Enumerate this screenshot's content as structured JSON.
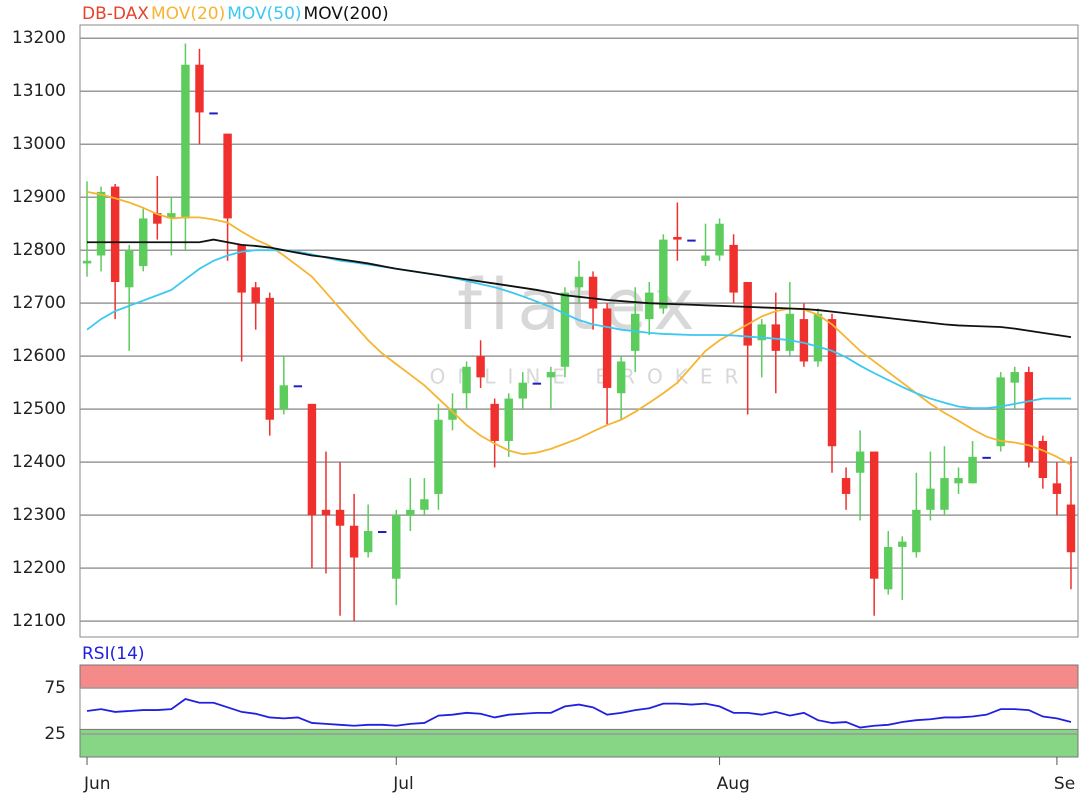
{
  "chart_data": [
    {
      "type": "candlestick",
      "name": "DB-DAX",
      "color": "#e8412c",
      "up_color": "#5ccc5c",
      "down_color": "#f0302d",
      "doji_color": "#2020c0",
      "watermark": [
        "flatex",
        "ONLINE BROKER"
      ],
      "categories": [
        "Jun",
        null,
        null,
        null,
        null,
        null,
        null,
        null,
        null,
        null,
        null,
        null,
        null,
        null,
        null,
        null,
        null,
        null,
        null,
        null,
        null,
        null,
        "Jul",
        null,
        null,
        null,
        null,
        null,
        null,
        null,
        null,
        null,
        null,
        null,
        null,
        null,
        null,
        null,
        null,
        null,
        null,
        null,
        null,
        null,
        null,
        "Aug",
        null,
        null,
        null,
        null,
        null,
        null,
        null,
        null,
        null,
        null,
        null,
        null,
        null,
        null,
        null,
        null,
        null,
        null,
        null,
        null,
        null,
        null,
        null,
        "Se",
        null
      ],
      "open": [
        12775,
        12790,
        12920,
        12730,
        12770,
        12870,
        12860,
        12860,
        13150,
        13060,
        13020,
        12810,
        12730,
        12710,
        12500,
        12545,
        12510,
        12310,
        12310,
        12280,
        12230,
        12270,
        12180,
        12300,
        12310,
        12340,
        12480,
        12530,
        12600,
        12510,
        12440,
        12520,
        12550,
        12560,
        12580,
        12730,
        12750,
        12690,
        12530,
        12610,
        12670,
        12690,
        12825,
        12820,
        12780,
        12790,
        12810,
        12740,
        12630,
        12660,
        12610,
        12670,
        12590,
        12670,
        12370,
        12380,
        12420,
        12160,
        12240,
        12230,
        12310,
        12310,
        12360,
        12360,
        12410,
        12430,
        12550,
        12570,
        12440,
        12360,
        12320
      ],
      "high": [
        12930,
        12920,
        12925,
        12810,
        12880,
        12940,
        12900,
        13190,
        13180,
        13060,
        13020,
        12810,
        12740,
        12720,
        12600,
        12545,
        12510,
        12420,
        12400,
        12340,
        12320,
        12270,
        12310,
        12370,
        12370,
        12510,
        12530,
        12590,
        12630,
        12520,
        12530,
        12570,
        12550,
        12580,
        12730,
        12780,
        12760,
        12700,
        12600,
        12730,
        12740,
        12830,
        12890,
        12820,
        12850,
        12860,
        12830,
        12740,
        12670,
        12720,
        12740,
        12700,
        12690,
        12680,
        12390,
        12460,
        12420,
        12270,
        12260,
        12380,
        12420,
        12430,
        12390,
        12440,
        12410,
        12570,
        12580,
        12580,
        12450,
        12400,
        12410
      ],
      "low": [
        12750,
        12760,
        12670,
        12610,
        12760,
        12820,
        12790,
        12800,
        13000,
        13060,
        12780,
        12590,
        12650,
        12450,
        12490,
        12545,
        12200,
        12190,
        12110,
        12100,
        12220,
        12270,
        12130,
        12270,
        12300,
        12310,
        12460,
        12500,
        12540,
        12390,
        12410,
        12500,
        12550,
        12500,
        12560,
        12700,
        12650,
        12470,
        12480,
        12570,
        12640,
        12680,
        12780,
        12820,
        12770,
        12780,
        12700,
        12490,
        12560,
        12530,
        12600,
        12580,
        12580,
        12380,
        12310,
        12290,
        12110,
        12150,
        12140,
        12220,
        12290,
        12300,
        12340,
        12360,
        12410,
        12420,
        12500,
        12390,
        12350,
        12300,
        12160
      ],
      "close": [
        12780,
        12910,
        12740,
        12800,
        12860,
        12850,
        12870,
        13150,
        13060,
        13060,
        12860,
        12720,
        12700,
        12480,
        12545,
        12545,
        12300,
        12300,
        12280,
        12220,
        12270,
        12270,
        12300,
        12310,
        12330,
        12480,
        12500,
        12580,
        12560,
        12440,
        12520,
        12550,
        12550,
        12570,
        12720,
        12750,
        12690,
        12540,
        12590,
        12680,
        12720,
        12820,
        12820,
        12820,
        12790,
        12850,
        12720,
        12620,
        12660,
        12610,
        12680,
        12590,
        12680,
        12430,
        12340,
        12420,
        12180,
        12240,
        12250,
        12310,
        12350,
        12370,
        12370,
        12410,
        12410,
        12560,
        12570,
        12400,
        12370,
        12340,
        12230
      ],
      "series": [
        {
          "name": "MOV(20)",
          "color": "#f5b533",
          "values": [
            12910,
            12905,
            12898,
            12890,
            12880,
            12868,
            12860,
            12862,
            12862,
            12858,
            12852,
            12835,
            12820,
            12808,
            12790,
            12770,
            12750,
            12720,
            12690,
            12660,
            12630,
            12605,
            12585,
            12565,
            12545,
            12520,
            12495,
            12470,
            12450,
            12435,
            12422,
            12415,
            12418,
            12425,
            12435,
            12445,
            12458,
            12470,
            12480,
            12495,
            12512,
            12530,
            12550,
            12580,
            12610,
            12630,
            12645,
            12660,
            12675,
            12685,
            12690,
            12688,
            12678,
            12660,
            12635,
            12610,
            12590,
            12570,
            12550,
            12530,
            12510,
            12493,
            12478,
            12462,
            12448,
            12440,
            12437,
            12432,
            12422,
            12410,
            12395
          ]
        },
        {
          "name": "MOV(50)",
          "color": "#3cc8f0",
          "values": [
            12650,
            12670,
            12685,
            12695,
            12705,
            12715,
            12725,
            12745,
            12765,
            12780,
            12790,
            12797,
            12800,
            12800,
            12800,
            12797,
            12792,
            12786,
            12780,
            12777,
            12773,
            12769,
            12765,
            12761,
            12757,
            12753,
            12748,
            12742,
            12736,
            12730,
            12722,
            12713,
            12703,
            12693,
            12680,
            12668,
            12660,
            12655,
            12650,
            12647,
            12644,
            12642,
            12641,
            12640,
            12640,
            12640,
            12639,
            12637,
            12635,
            12633,
            12630,
            12625,
            12618,
            12610,
            12598,
            12582,
            12568,
            12555,
            12542,
            12530,
            12520,
            12512,
            12505,
            12502,
            12502,
            12505,
            12510,
            12515,
            12520,
            12520,
            12520
          ]
        },
        {
          "name": "MOV(200)",
          "color": "#111111",
          "values": [
            12815,
            12815,
            12815,
            12815,
            12815,
            12815,
            12815,
            12815,
            12815,
            12820,
            12815,
            12810,
            12808,
            12805,
            12800,
            12795,
            12790,
            12787,
            12783,
            12779,
            12775,
            12770,
            12765,
            12761,
            12757,
            12753,
            12749,
            12745,
            12741,
            12737,
            12733,
            12729,
            12725,
            12720,
            12715,
            12712,
            12709,
            12706,
            12704,
            12702,
            12700,
            12699,
            12698,
            12697,
            12696,
            12695,
            12694,
            12693,
            12692,
            12691,
            12690,
            12689,
            12687,
            12684,
            12681,
            12678,
            12675,
            12672,
            12669,
            12666,
            12663,
            12660,
            12658,
            12657,
            12656,
            12655,
            12652,
            12648,
            12644,
            12640,
            12636
          ]
        }
      ],
      "ylim": [
        12070,
        13225
      ],
      "yticks": [
        12100,
        12200,
        12300,
        12400,
        12500,
        12600,
        12700,
        12800,
        12900,
        13000,
        13100,
        13200
      ],
      "grid": true
    },
    {
      "type": "line",
      "series": [
        {
          "name": "RSI(14)",
          "color": "#2020e0",
          "values": [
            50,
            52,
            49,
            50,
            51,
            51,
            52,
            63,
            59,
            59,
            54,
            49,
            47,
            43,
            42,
            43,
            37,
            36,
            35,
            34,
            35,
            35,
            34,
            36,
            37,
            45,
            46,
            48,
            47,
            43,
            46,
            47,
            48,
            48,
            55,
            57,
            54,
            46,
            48,
            51,
            53,
            58,
            58,
            57,
            58,
            55,
            48,
            48,
            46,
            49,
            45,
            48,
            40,
            37,
            38,
            32,
            34,
            35,
            38,
            40,
            41,
            43,
            43,
            44,
            46,
            52,
            52,
            51,
            44,
            42,
            38
          ]
        }
      ],
      "ylim": [
        0,
        100
      ],
      "yticks": [
        25,
        75
      ],
      "grid": true,
      "bands": [
        {
          "from": 75,
          "to": 100,
          "color": "#f58a8a"
        },
        {
          "from": 0,
          "to": 30,
          "color": "#86d686"
        }
      ]
    }
  ]
}
